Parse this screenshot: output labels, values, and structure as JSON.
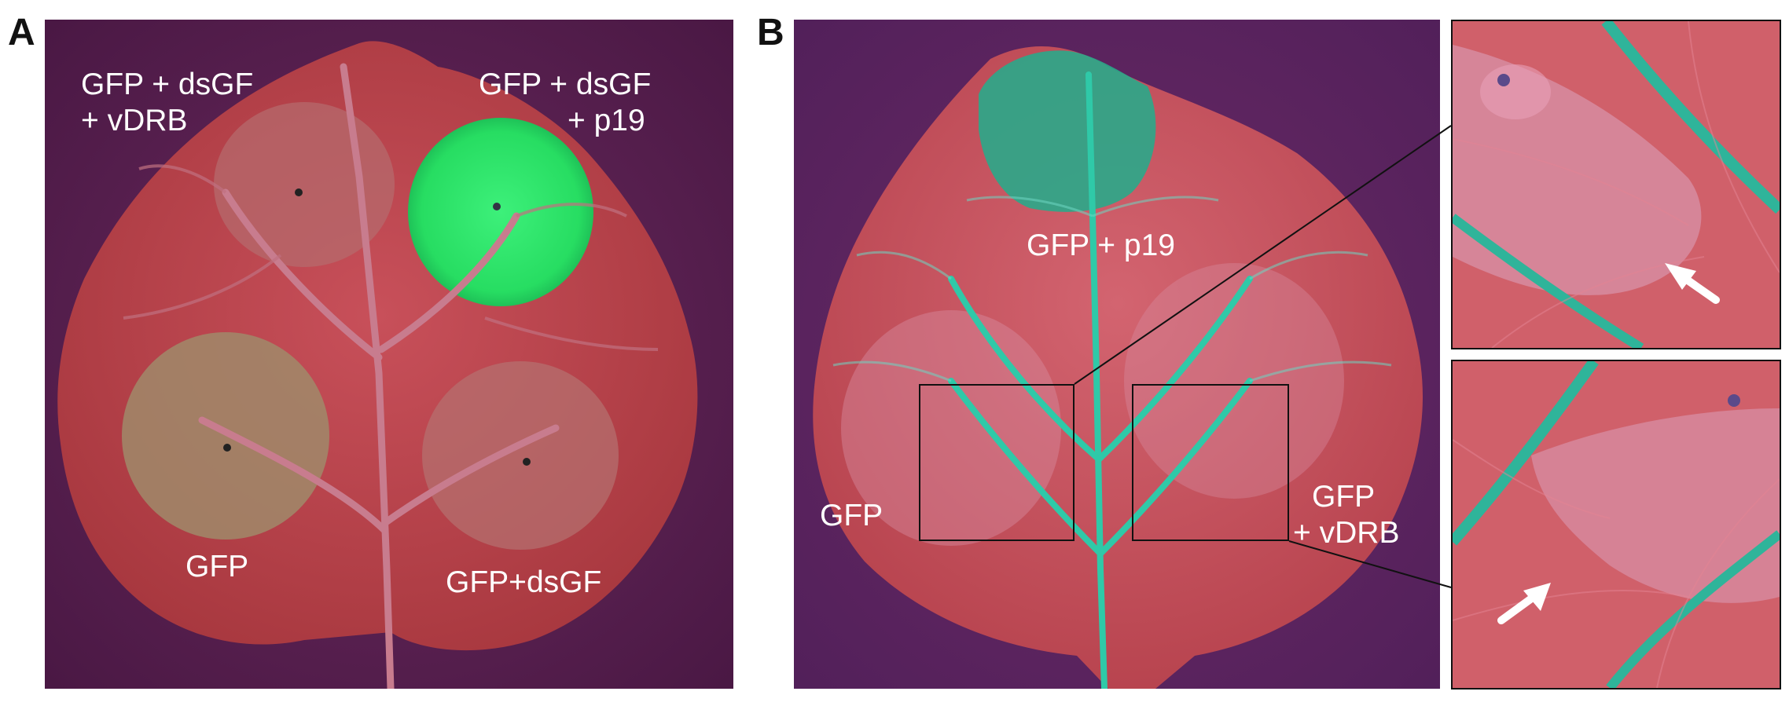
{
  "panels": {
    "a": {
      "letter": "A",
      "labels": {
        "top_left_line1": "GFP + dsGF",
        "top_left_line2": "+ vDRB",
        "top_right_line1": "GFP + dsGF",
        "top_right_line2": "+ p19",
        "bottom_left": "GFP",
        "bottom_right": "GFP+dsGF"
      }
    },
    "b": {
      "letter": "B",
      "labels": {
        "top": "GFP + p19",
        "left": "GFP",
        "right_line1": "GFP",
        "right_line2": "+ vDRB"
      }
    }
  },
  "colors": {
    "background_purple": "#5a1f52",
    "leaf_red": "#b8404e",
    "gfp_green": "#2ee86a",
    "vein_cyan": "#2fc9a8"
  },
  "icons": {
    "inset_arrow": "white-arrow-icon"
  }
}
